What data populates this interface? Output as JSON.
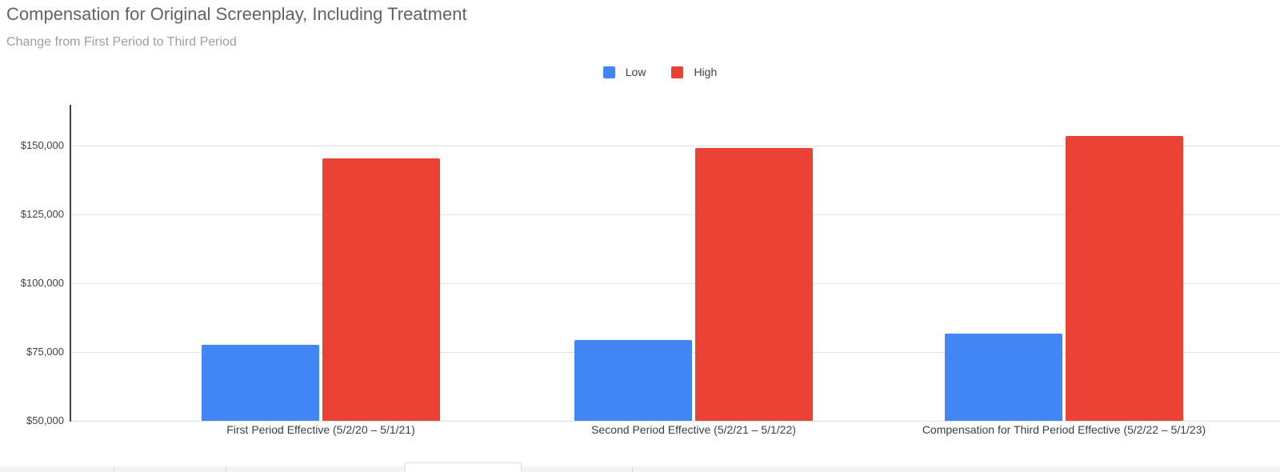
{
  "chart_data": {
    "type": "bar",
    "title": "Compensation for Original Screenplay, Including Treatment",
    "subtitle": "Change from First Period to Third Period",
    "categories": [
      "First Period Effective (5/2/20 – 5/1/21)",
      "Second Period Effective (5/2/21 – 5/1/22)",
      "Compensation for Third Period Effective (5/2/22 – 5/1/23)"
    ],
    "series": [
      {
        "name": "Low",
        "color": "#4285f4",
        "values": [
          77495,
          79432,
          81815
        ]
      },
      {
        "name": "High",
        "color": "#ea4335",
        "values": [
          145469,
          149106,
          153579
        ]
      }
    ],
    "xlabel": "",
    "ylabel": "",
    "ylim": [
      50000,
      165000
    ],
    "yticks": [
      {
        "value": 50000,
        "label": "$50,000"
      },
      {
        "value": 75000,
        "label": "$75,000"
      },
      {
        "value": 100000,
        "label": "$100,000"
      },
      {
        "value": 125000,
        "label": "$125,000"
      },
      {
        "value": 150000,
        "label": "$150,000"
      }
    ],
    "grid": true,
    "legend_position": "top"
  }
}
